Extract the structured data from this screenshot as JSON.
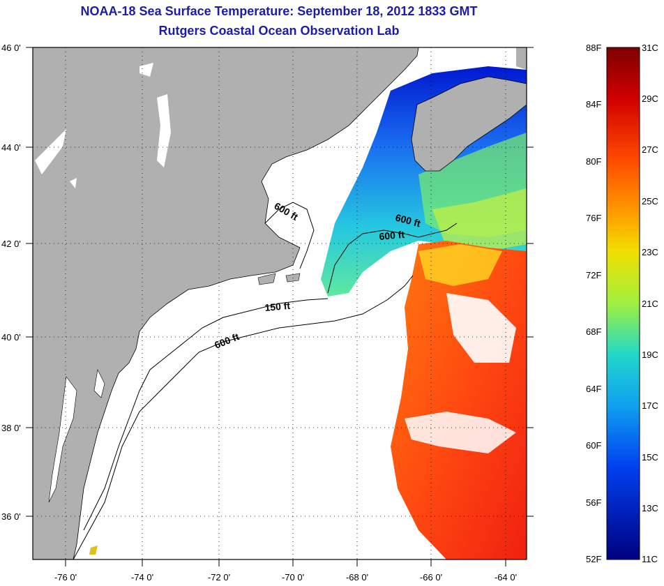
{
  "title": "NOAA-18 Sea Surface Temperature:  September 18, 2012 1833 GMT",
  "subtitle": "Rutgers Coastal Ocean Observation Lab",
  "map": {
    "lat_labels": [
      "46 0'",
      "44 0'",
      "42 0'",
      "40 0'",
      "38 0'",
      "36 0'"
    ],
    "lon_labels": [
      "-76 0'",
      "-74 0'",
      "-72 0'",
      "-70 0'",
      "-68 0'",
      "-66 0'",
      "-64 0'"
    ],
    "contour_labels": [
      "600 ft",
      "600 ft",
      "600 ft",
      "150 ft",
      "600 ft"
    ],
    "colors": {
      "land": "#b0b0b0",
      "water_nodata": "#ffffff",
      "title": "#1c1ca8"
    }
  },
  "colorbar": {
    "fahrenheit": [
      "88F",
      "84F",
      "80F",
      "76F",
      "72F",
      "68F",
      "64F",
      "60F",
      "56F",
      "52F"
    ],
    "celsius": [
      "31C",
      "29C",
      "27C",
      "25C",
      "23C",
      "21C",
      "19C",
      "17C",
      "15C",
      "13C",
      "11C"
    ],
    "color_stops": [
      "#7f0000",
      "#e00000",
      "#ff5a00",
      "#ffb000",
      "#e6f000",
      "#70f080",
      "#10d0e0",
      "#1090f0",
      "#0030f0",
      "#00007f"
    ]
  }
}
